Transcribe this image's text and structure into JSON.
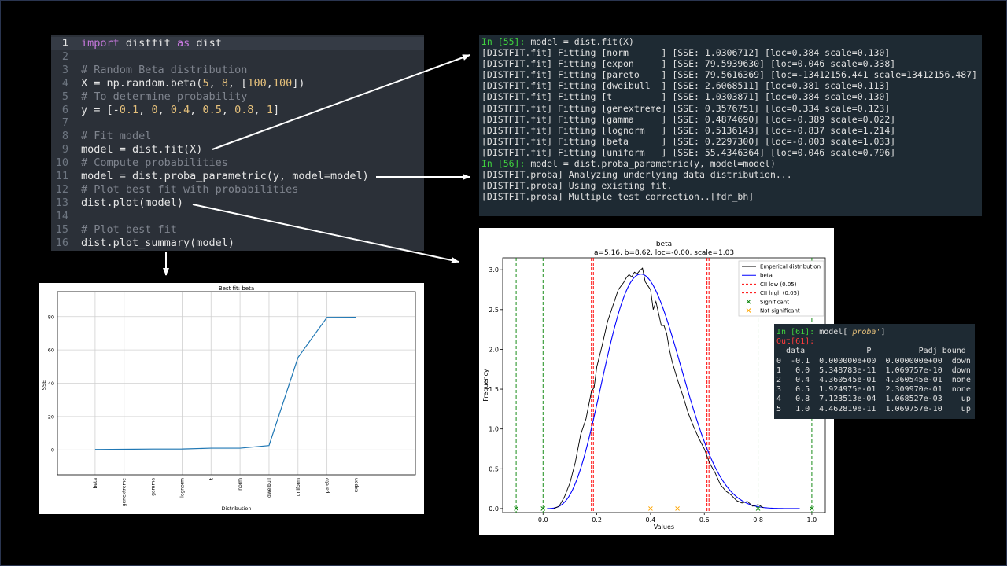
{
  "editor": {
    "lines": [
      {
        "n": "1",
        "tokens": [
          [
            "kw",
            "import"
          ],
          [
            "",
            " distfit "
          ],
          [
            "kw",
            "as"
          ],
          [
            "",
            " dist"
          ]
        ]
      },
      {
        "n": "2",
        "tokens": []
      },
      {
        "n": "3",
        "tokens": [
          [
            "cm",
            "# Random Beta distribution"
          ]
        ]
      },
      {
        "n": "4",
        "tokens": [
          [
            "",
            "X = np.random.beta("
          ],
          [
            "num",
            "5"
          ],
          [
            "",
            ", "
          ],
          [
            "num",
            "8"
          ],
          [
            "",
            ", ["
          ],
          [
            "num",
            "100"
          ],
          [
            "",
            ","
          ],
          [
            "num",
            "100"
          ],
          [
            "",
            "])"
          ]
        ]
      },
      {
        "n": "5",
        "tokens": [
          [
            "cm",
            "# To determine probability"
          ]
        ]
      },
      {
        "n": "6",
        "tokens": [
          [
            "",
            "y = [-"
          ],
          [
            "num",
            "0.1"
          ],
          [
            "",
            ", "
          ],
          [
            "num",
            "0"
          ],
          [
            "",
            ", "
          ],
          [
            "num",
            "0.4"
          ],
          [
            "",
            ", "
          ],
          [
            "num",
            "0.5"
          ],
          [
            "",
            ", "
          ],
          [
            "num",
            "0.8"
          ],
          [
            "",
            ", "
          ],
          [
            "num",
            "1"
          ],
          [
            "",
            "]"
          ]
        ]
      },
      {
        "n": "7",
        "tokens": []
      },
      {
        "n": "8",
        "tokens": [
          [
            "cm",
            "# Fit model"
          ]
        ]
      },
      {
        "n": "9",
        "tokens": [
          [
            "",
            "model = dist.fit(X)"
          ]
        ]
      },
      {
        "n": "10",
        "tokens": [
          [
            "cm",
            "# Compute probabilities"
          ]
        ]
      },
      {
        "n": "11",
        "tokens": [
          [
            "",
            "model = dist.proba_parametric(y, model=model)"
          ]
        ]
      },
      {
        "n": "12",
        "tokens": [
          [
            "cm",
            "# Plot best fit with probabilities"
          ]
        ]
      },
      {
        "n": "13",
        "tokens": [
          [
            "",
            "dist.plot(model)"
          ]
        ]
      },
      {
        "n": "14",
        "tokens": []
      },
      {
        "n": "15",
        "tokens": [
          [
            "cm",
            "# Plot best fit"
          ]
        ]
      },
      {
        "n": "16",
        "tokens": [
          [
            "",
            "dist.plot_summary(model)"
          ]
        ]
      }
    ]
  },
  "fit_output": {
    "prompt1": "In [55]:",
    "cmd1": " model = dist.fit(X)",
    "fit_lines": [
      "[DISTFIT.fit] Fitting [norm      ] [SSE: 1.0306712] [loc=0.384 scale=0.130]",
      "[DISTFIT.fit] Fitting [expon     ] [SSE: 79.5939630] [loc=0.046 scale=0.338]",
      "[DISTFIT.fit] Fitting [pareto    ] [SSE: 79.5616369] [loc=-13412156.441 scale=13412156.487]",
      "[DISTFIT.fit] Fitting [dweibull  ] [SSE: 2.6068511] [loc=0.381 scale=0.113]",
      "[DISTFIT.fit] Fitting [t         ] [SSE: 1.0303871] [loc=0.384 scale=0.130]",
      "[DISTFIT.fit] Fitting [genextreme] [SSE: 0.3576751] [loc=0.334 scale=0.123]",
      "[DISTFIT.fit] Fitting [gamma     ] [SSE: 0.4874690] [loc=-0.389 scale=0.022]",
      "[DISTFIT.fit] Fitting [lognorm   ] [SSE: 0.5136143] [loc=-0.837 scale=1.214]",
      "[DISTFIT.fit] Fitting [beta      ] [SSE: 0.2297300] [loc=-0.003 scale=1.033]",
      "[DISTFIT.fit] Fitting [uniform   ] [SSE: 55.4346364] [loc=0.046 scale=0.796]"
    ],
    "prompt2": "In [56]:",
    "cmd2": " model = dist.proba_parametric(y, model=model)",
    "proba_lines": [
      "[DISTFIT.proba] Analyzing underlying data distribution...",
      "[DISTFIT.proba] Using existing fit.",
      "[DISTFIT.proba] Multiple test correction..[fdr_bh]"
    ]
  },
  "proba_table": {
    "prompt_in": "In [61]:",
    "cmd_pre": " model[",
    "cmd_arg": "'proba'",
    "cmd_post": "]",
    "prompt_out": "Out[61]:",
    "header": "  data             P          Padj bound",
    "rows": [
      "0  -0.1  0.000000e+00  0.000000e+00  down",
      "1   0.0  5.348783e-11  1.069757e-10  down",
      "2   0.4  4.360545e-01  4.360545e-01  none",
      "3   0.5  1.924975e-01  2.309970e-01  none",
      "4   0.8  7.123513e-04  1.068527e-03    up",
      "5   1.0  4.462819e-11  1.069757e-10    up"
    ]
  },
  "chart_data": [
    {
      "type": "line",
      "title": "Best fit: beta",
      "xlabel": "Distribution",
      "ylabel": "SSE",
      "categories": [
        "beta",
        "genextreme",
        "gamma",
        "lognorm",
        "t",
        "norm",
        "dweibull",
        "uniform",
        "pareto",
        "expon"
      ],
      "values": [
        0.22973,
        0.3576751,
        0.487469,
        0.5136143,
        1.0303871,
        1.0306712,
        2.6068511,
        55.4346364,
        79.5616369,
        79.593963
      ],
      "ylim": [
        -15,
        95
      ],
      "yticks": [
        0,
        20,
        40,
        60,
        80
      ],
      "grid": true,
      "color": "#1f77b4"
    },
    {
      "type": "line",
      "title": "beta",
      "subtitle": "a=5.16, b=8.62, loc=-0.00, scale=1.03",
      "xlabel": "Values",
      "ylabel": "Frequency",
      "xlim": [
        -0.15,
        1.05
      ],
      "ylim": [
        -0.05,
        3.15
      ],
      "xticks": [
        0.0,
        0.2,
        0.4,
        0.6,
        0.8,
        1.0
      ],
      "yticks": [
        0.0,
        0.5,
        1.0,
        1.5,
        2.0,
        2.5,
        3.0
      ],
      "beta_params": {
        "a": 5.16,
        "b": 8.62,
        "loc": -0.0,
        "scale": 1.03
      },
      "empirical": {
        "x": [
          0.04,
          0.06,
          0.08,
          0.1,
          0.12,
          0.14,
          0.16,
          0.18,
          0.19,
          0.2,
          0.22,
          0.24,
          0.26,
          0.28,
          0.3,
          0.31,
          0.32,
          0.33,
          0.34,
          0.35,
          0.36,
          0.37,
          0.38,
          0.39,
          0.4,
          0.41,
          0.42,
          0.43,
          0.44,
          0.45,
          0.46,
          0.47,
          0.48,
          0.5,
          0.52,
          0.54,
          0.56,
          0.58,
          0.6,
          0.62,
          0.64,
          0.66,
          0.68,
          0.7,
          0.72,
          0.74,
          0.76,
          0.78,
          0.8,
          0.82
        ],
        "y": [
          0.0,
          0.03,
          0.15,
          0.32,
          0.58,
          0.93,
          1.13,
          1.47,
          1.52,
          1.78,
          2.05,
          2.35,
          2.55,
          2.75,
          2.84,
          2.9,
          2.94,
          2.91,
          2.97,
          2.95,
          2.99,
          3.02,
          2.85,
          2.8,
          2.75,
          2.5,
          2.6,
          2.45,
          2.3,
          2.3,
          2.2,
          2.0,
          1.85,
          1.62,
          1.42,
          1.2,
          1.03,
          0.88,
          0.75,
          0.57,
          0.45,
          0.3,
          0.22,
          0.17,
          0.1,
          0.07,
          0.09,
          0.03,
          0.05,
          0.01
        ]
      },
      "cii_low": 0.18,
      "cii_high": 0.61,
      "significant_x": [
        -0.1,
        0.0,
        0.8,
        1.0
      ],
      "not_significant_x": [
        0.4,
        0.5
      ],
      "legend": {
        "placement": "top-right",
        "entries": [
          "Emperical distribution",
          "beta",
          "CII low (0.05)",
          "CII high (0.05)",
          "Significant",
          "Not significant"
        ]
      },
      "colors": {
        "empirical": "#000000",
        "fit": "#0000ff",
        "cii": "#ff0000",
        "significant": "#008000",
        "not_significant": "#ffa500"
      }
    }
  ]
}
